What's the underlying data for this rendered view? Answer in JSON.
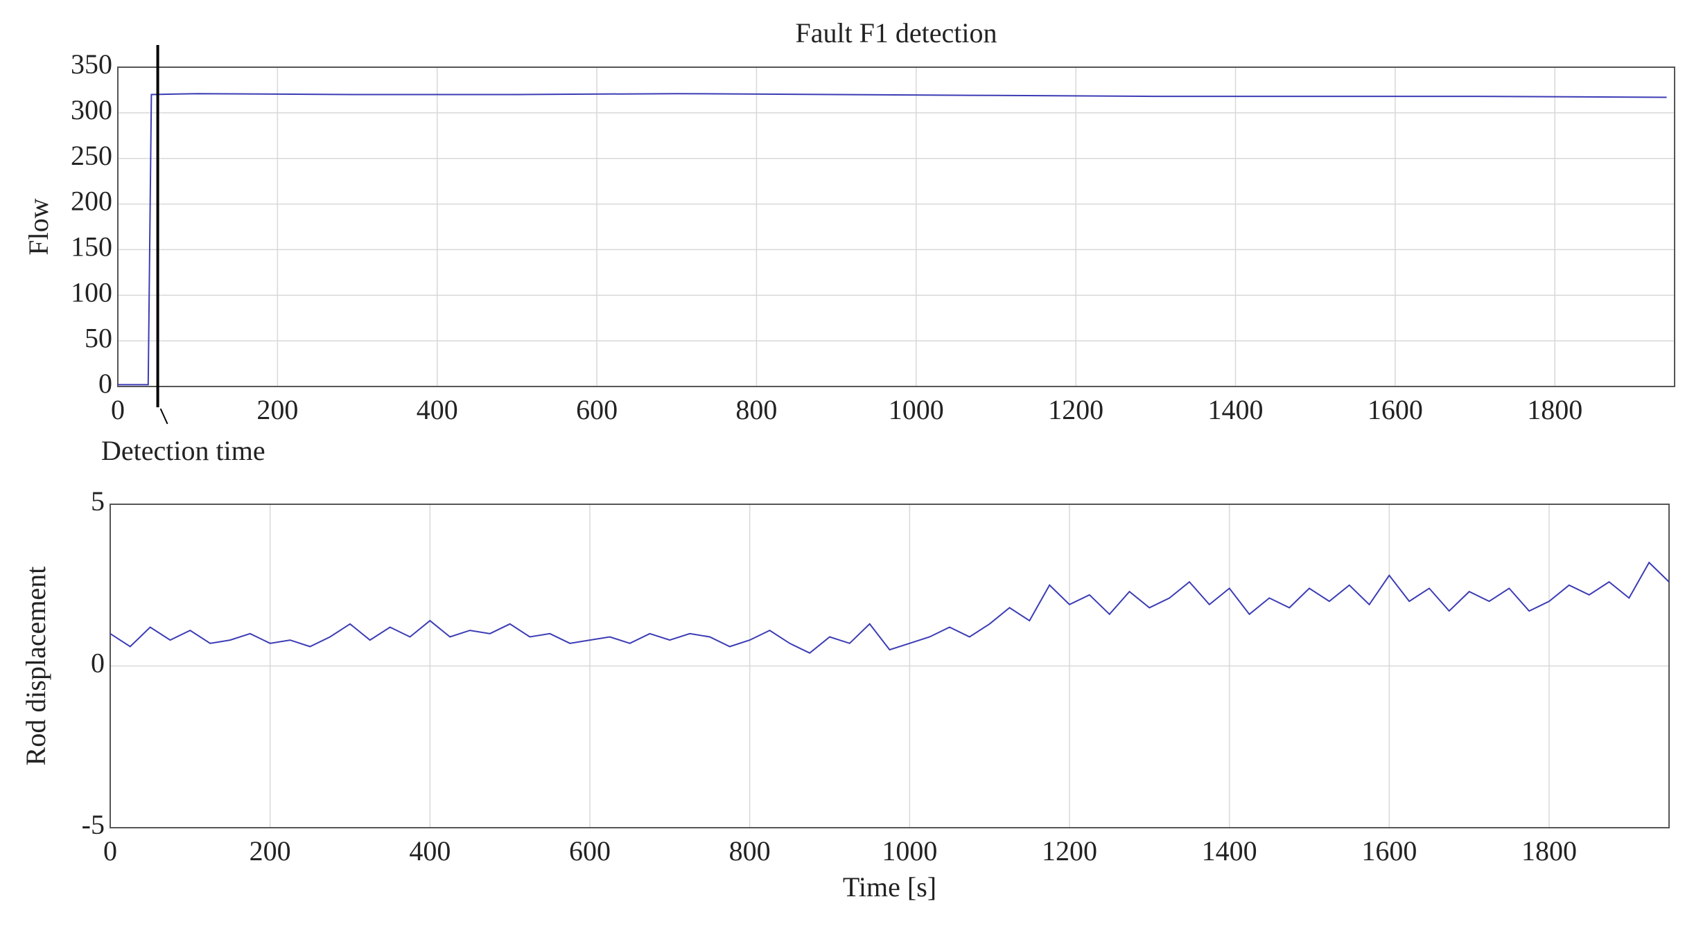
{
  "chart_data": [
    {
      "type": "line",
      "title": "Fault F1 detection",
      "y_label": "Flow",
      "x": [
        0,
        38,
        42,
        100,
        300,
        500,
        700,
        900,
        1100,
        1300,
        1500,
        1700,
        1940
      ],
      "series": [
        {
          "color": "#3b3bb5",
          "values": [
            2,
            2,
            320,
            321,
            320,
            320,
            321,
            320,
            319,
            318,
            318,
            318,
            317
          ]
        }
      ],
      "xlim": [
        0,
        1950
      ],
      "xticks": [
        0,
        200,
        400,
        600,
        800,
        1000,
        1200,
        1400,
        1600,
        1800
      ],
      "ylim": [
        0,
        350
      ],
      "yticks": [
        0,
        50,
        100,
        150,
        200,
        250,
        300,
        350
      ],
      "grid": true,
      "annotations": [
        {
          "text": "Detection time",
          "x": 50
        }
      ]
    },
    {
      "type": "line",
      "x_label": "Time [s]",
      "y_label": "Rod displacement",
      "x": [
        0,
        25,
        50,
        75,
        100,
        125,
        150,
        175,
        200,
        225,
        250,
        275,
        300,
        325,
        350,
        375,
        400,
        425,
        450,
        475,
        500,
        525,
        550,
        575,
        600,
        625,
        650,
        675,
        700,
        725,
        750,
        775,
        800,
        825,
        850,
        875,
        900,
        925,
        950,
        975,
        1000,
        1025,
        1050,
        1075,
        1100,
        1125,
        1150,
        1175,
        1200,
        1225,
        1250,
        1275,
        1300,
        1325,
        1350,
        1375,
        1400,
        1425,
        1450,
        1475,
        1500,
        1525,
        1550,
        1575,
        1600,
        1625,
        1650,
        1675,
        1700,
        1725,
        1750,
        1775,
        1800,
        1825,
        1850,
        1875,
        1900,
        1925,
        1950
      ],
      "series": [
        {
          "color": "#3b3bb5",
          "values": [
            1.0,
            0.6,
            1.2,
            0.8,
            1.1,
            0.7,
            0.8,
            1.0,
            0.7,
            0.8,
            0.6,
            0.9,
            1.3,
            0.8,
            1.2,
            0.9,
            1.4,
            0.9,
            1.1,
            1.0,
            1.3,
            0.9,
            1.0,
            0.7,
            0.8,
            0.9,
            0.7,
            1.0,
            0.8,
            1.0,
            0.9,
            0.6,
            0.8,
            1.1,
            0.7,
            0.4,
            0.9,
            0.7,
            1.3,
            0.5,
            0.7,
            0.9,
            1.2,
            0.9,
            1.3,
            1.8,
            1.4,
            2.5,
            1.9,
            2.2,
            1.6,
            2.3,
            1.8,
            2.1,
            2.6,
            1.9,
            2.4,
            1.6,
            2.1,
            1.8,
            2.4,
            2.0,
            2.5,
            1.9,
            2.8,
            2.0,
            2.4,
            1.7,
            2.3,
            2.0,
            2.4,
            1.7,
            2.0,
            2.5,
            2.2,
            2.6,
            2.1,
            3.2,
            2.6
          ]
        }
      ],
      "xlim": [
        0,
        1950
      ],
      "xticks": [
        0,
        200,
        400,
        600,
        800,
        1000,
        1200,
        1400,
        1600,
        1800
      ],
      "ylim": [
        -5,
        5
      ],
      "yticks": [
        -5,
        0,
        5
      ],
      "grid": true
    }
  ]
}
